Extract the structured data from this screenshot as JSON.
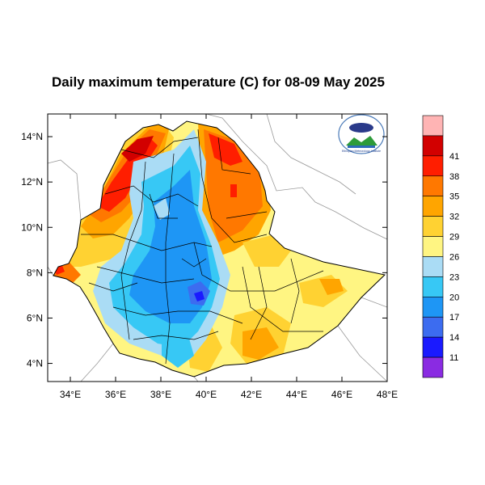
{
  "title": "Daily maximum temperature (C) for 08-09 May 2025",
  "map": {
    "lon_range": [
      33,
      48
    ],
    "lat_range": [
      3.2,
      15
    ],
    "lon_ticks": [
      {
        "value": 34,
        "label": "34°E"
      },
      {
        "value": 36,
        "label": "36°E"
      },
      {
        "value": 38,
        "label": "38°E"
      },
      {
        "value": 40,
        "label": "40°E"
      },
      {
        "value": 42,
        "label": "42°E"
      },
      {
        "value": 44,
        "label": "44°E"
      },
      {
        "value": 46,
        "label": "46°E"
      },
      {
        "value": 48,
        "label": "48°E"
      }
    ],
    "lat_ticks": [
      {
        "value": 14,
        "label": "14°N"
      },
      {
        "value": 12,
        "label": "12°N"
      },
      {
        "value": 10,
        "label": "10°N"
      },
      {
        "value": 8,
        "label": "8°N"
      },
      {
        "value": 6,
        "label": "6°N"
      },
      {
        "value": 4,
        "label": "4°N"
      }
    ],
    "ocean_color": "#ffffff",
    "border_color": "#999999",
    "region_color": "#000000"
  },
  "colorbar": {
    "colors": [
      "#8a2be2",
      "#1a1aff",
      "#3c6cf0",
      "#1e96f5",
      "#37c8f5",
      "#aadcf5",
      "#fff582",
      "#ffd232",
      "#ffa500",
      "#ff7800",
      "#ff1e00",
      "#d20000",
      "#ffb4b4"
    ],
    "labels": [
      "11",
      "14",
      "17",
      "20",
      "23",
      "26",
      "29",
      "32",
      "35",
      "38",
      "41"
    ]
  },
  "logo": {
    "text": "Ethiopian Meteorology Institute"
  }
}
